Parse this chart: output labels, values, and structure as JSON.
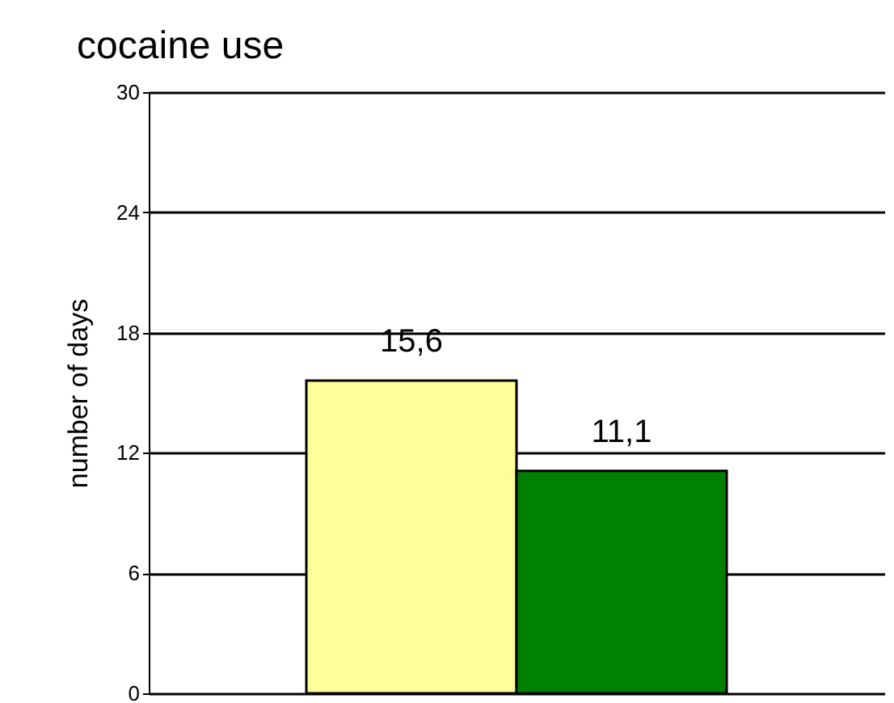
{
  "chart_data": {
    "type": "bar",
    "title": "cocaine use",
    "ylabel": "number of days",
    "categories": [
      null,
      null
    ],
    "values": [
      15.6,
      11.1
    ],
    "colors": [
      "#ffff99",
      "#008000"
    ],
    "value_labels": [
      "15,6",
      "11,1"
    ],
    "ylim": [
      0,
      30
    ],
    "yticks": [
      0,
      6,
      12,
      18,
      24,
      30
    ],
    "grid": "y"
  }
}
